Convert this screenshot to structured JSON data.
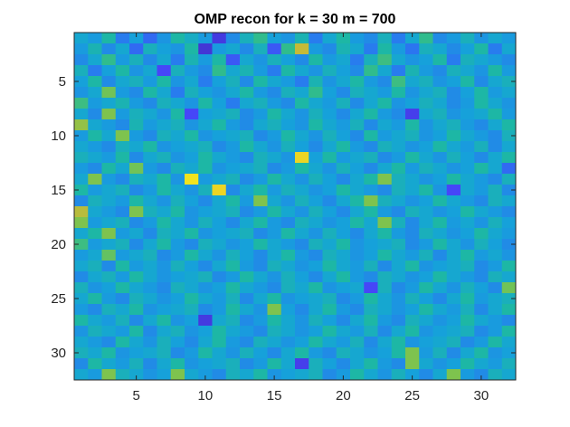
{
  "chart_data": {
    "type": "heatmap",
    "title": "OMP recon for k = 30 m = 700",
    "xlabel": "",
    "ylabel": "",
    "rows": 32,
    "cols": 32,
    "xlim": [
      0.5,
      32.5
    ],
    "ylim": [
      0.5,
      32.5
    ],
    "y_reversed": true,
    "x_ticks": [
      5,
      10,
      15,
      20,
      25,
      30
    ],
    "y_ticks": [
      5,
      10,
      15,
      20,
      25,
      30
    ],
    "x_tick_labels": [
      "5",
      "10",
      "15",
      "20",
      "25",
      "30"
    ],
    "y_tick_labels": [
      "5",
      "10",
      "15",
      "20",
      "25",
      "30"
    ],
    "colormap": "parula",
    "colormap_stops": [
      "#3e26a8",
      "#4743f8",
      "#2a77f0",
      "#15a4d9",
      "#1eba9c",
      "#7ac44f",
      "#e2b72f",
      "#f9fb15"
    ],
    "clim": [
      0,
      1
    ],
    "grid": false,
    "legend": "none",
    "values": [
      [
        0.45,
        0.4,
        0.55,
        0.3,
        0.42,
        0.25,
        0.38,
        0.55,
        0.48,
        0.4,
        0.1,
        0.35,
        0.5,
        0.6,
        0.42,
        0.38,
        0.52,
        0.3,
        0.45,
        0.55,
        0.4,
        0.35,
        0.5,
        0.3,
        0.45,
        0.6,
        0.35,
        0.4,
        0.5,
        0.38,
        0.45,
        0.4
      ],
      [
        0.4,
        0.52,
        0.35,
        0.45,
        0.25,
        0.5,
        0.42,
        0.38,
        0.55,
        0.08,
        0.4,
        0.45,
        0.35,
        0.5,
        0.2,
        0.6,
        0.82,
        0.4,
        0.35,
        0.52,
        0.45,
        0.3,
        0.55,
        0.4,
        0.28,
        0.5,
        0.45,
        0.35,
        0.42,
        0.55,
        0.3,
        0.45
      ],
      [
        0.35,
        0.45,
        0.6,
        0.4,
        0.5,
        0.35,
        0.45,
        0.3,
        0.52,
        0.4,
        0.55,
        0.2,
        0.45,
        0.38,
        0.5,
        0.42,
        0.35,
        0.55,
        0.4,
        0.45,
        0.3,
        0.5,
        0.62,
        0.45,
        0.38,
        0.42,
        0.55,
        0.3,
        0.5,
        0.45,
        0.4,
        0.35
      ],
      [
        0.5,
        0.3,
        0.42,
        0.55,
        0.38,
        0.45,
        0.15,
        0.5,
        0.4,
        0.35,
        0.6,
        0.45,
        0.52,
        0.4,
        0.3,
        0.55,
        0.45,
        0.38,
        0.5,
        0.42,
        0.35,
        0.6,
        0.45,
        0.3,
        0.52,
        0.4,
        0.35,
        0.5,
        0.45,
        0.38,
        0.55,
        0.4
      ],
      [
        0.42,
        0.55,
        0.35,
        0.45,
        0.5,
        0.4,
        0.55,
        0.38,
        0.45,
        0.3,
        0.42,
        0.5,
        0.35,
        0.55,
        0.45,
        0.4,
        0.3,
        0.52,
        0.38,
        0.45,
        0.55,
        0.4,
        0.35,
        0.62,
        0.45,
        0.5,
        0.38,
        0.42,
        0.55,
        0.35,
        0.45,
        0.5
      ],
      [
        0.38,
        0.45,
        0.7,
        0.4,
        0.35,
        0.55,
        0.45,
        0.3,
        0.5,
        0.42,
        0.38,
        0.45,
        0.55,
        0.4,
        0.35,
        0.5,
        0.45,
        0.6,
        0.42,
        0.35,
        0.5,
        0.45,
        0.4,
        0.55,
        0.38,
        0.45,
        0.5,
        0.35,
        0.42,
        0.55,
        0.4,
        0.45
      ],
      [
        0.62,
        0.4,
        0.45,
        0.52,
        0.4,
        0.35,
        0.5,
        0.45,
        0.38,
        0.55,
        0.42,
        0.3,
        0.45,
        0.5,
        0.4,
        0.35,
        0.55,
        0.45,
        0.4,
        0.5,
        0.35,
        0.45,
        0.55,
        0.38,
        0.42,
        0.5,
        0.45,
        0.35,
        0.4,
        0.55,
        0.45,
        0.38
      ],
      [
        0.45,
        0.35,
        0.72,
        0.4,
        0.5,
        0.45,
        0.38,
        0.55,
        0.15,
        0.42,
        0.45,
        0.5,
        0.35,
        0.4,
        0.55,
        0.45,
        0.38,
        0.5,
        0.42,
        0.35,
        0.45,
        0.55,
        0.4,
        0.35,
        0.12,
        0.45,
        0.5,
        0.38,
        0.42,
        0.45,
        0.55,
        0.4
      ],
      [
        0.75,
        0.45,
        0.4,
        0.35,
        0.52,
        0.4,
        0.45,
        0.5,
        0.38,
        0.45,
        0.55,
        0.4,
        0.35,
        0.45,
        0.5,
        0.42,
        0.38,
        0.55,
        0.45,
        0.4,
        0.5,
        0.35,
        0.45,
        0.4,
        0.55,
        0.38,
        0.45,
        0.5,
        0.4,
        0.35,
        0.45,
        0.55
      ],
      [
        0.4,
        0.55,
        0.45,
        0.72,
        0.4,
        0.35,
        0.5,
        0.45,
        0.55,
        0.38,
        0.42,
        0.45,
        0.5,
        0.35,
        0.4,
        0.55,
        0.45,
        0.38,
        0.5,
        0.42,
        0.35,
        0.55,
        0.4,
        0.45,
        0.5,
        0.38,
        0.42,
        0.55,
        0.45,
        0.4,
        0.35,
        0.5
      ],
      [
        0.45,
        0.4,
        0.35,
        0.5,
        0.45,
        0.55,
        0.38,
        0.42,
        0.45,
        0.5,
        0.35,
        0.4,
        0.55,
        0.45,
        0.38,
        0.5,
        0.42,
        0.35,
        0.45,
        0.55,
        0.4,
        0.35,
        0.5,
        0.45,
        0.38,
        0.42,
        0.55,
        0.45,
        0.4,
        0.5,
        0.35,
        0.45
      ],
      [
        0.5,
        0.45,
        0.4,
        0.55,
        0.35,
        0.45,
        0.5,
        0.38,
        0.42,
        0.55,
        0.45,
        0.4,
        0.35,
        0.5,
        0.45,
        0.38,
        0.92,
        0.42,
        0.55,
        0.4,
        0.45,
        0.5,
        0.35,
        0.4,
        0.55,
        0.45,
        0.38,
        0.5,
        0.42,
        0.35,
        0.45,
        0.55
      ],
      [
        0.4,
        0.35,
        0.55,
        0.45,
        0.7,
        0.4,
        0.35,
        0.5,
        0.45,
        0.55,
        0.38,
        0.42,
        0.45,
        0.5,
        0.35,
        0.4,
        0.55,
        0.45,
        0.38,
        0.5,
        0.42,
        0.35,
        0.45,
        0.55,
        0.4,
        0.5,
        0.45,
        0.38,
        0.42,
        0.55,
        0.45,
        0.25
      ],
      [
        0.45,
        0.72,
        0.4,
        0.35,
        0.5,
        0.45,
        0.55,
        0.38,
        0.95,
        0.4,
        0.45,
        0.5,
        0.35,
        0.4,
        0.55,
        0.45,
        0.38,
        0.5,
        0.42,
        0.35,
        0.45,
        0.55,
        0.72,
        0.5,
        0.45,
        0.38,
        0.42,
        0.55,
        0.45,
        0.4,
        0.35,
        0.5
      ],
      [
        0.55,
        0.4,
        0.45,
        0.5,
        0.35,
        0.4,
        0.55,
        0.45,
        0.38,
        0.5,
        0.92,
        0.35,
        0.45,
        0.55,
        0.4,
        0.5,
        0.45,
        0.38,
        0.42,
        0.55,
        0.45,
        0.4,
        0.35,
        0.5,
        0.45,
        0.55,
        0.38,
        0.15,
        0.45,
        0.4,
        0.5,
        0.35
      ],
      [
        0.35,
        0.5,
        0.45,
        0.4,
        0.55,
        0.45,
        0.38,
        0.5,
        0.42,
        0.35,
        0.45,
        0.55,
        0.4,
        0.72,
        0.45,
        0.38,
        0.5,
        0.42,
        0.35,
        0.45,
        0.55,
        0.72,
        0.5,
        0.45,
        0.38,
        0.42,
        0.55,
        0.45,
        0.4,
        0.35,
        0.5,
        0.45
      ],
      [
        0.8,
        0.45,
        0.4,
        0.35,
        0.72,
        0.5,
        0.45,
        0.55,
        0.38,
        0.42,
        0.45,
        0.5,
        0.35,
        0.4,
        0.55,
        0.45,
        0.38,
        0.5,
        0.42,
        0.35,
        0.45,
        0.55,
        0.4,
        0.35,
        0.5,
        0.45,
        0.38,
        0.42,
        0.55,
        0.45,
        0.4,
        0.35
      ],
      [
        0.72,
        0.4,
        0.45,
        0.5,
        0.35,
        0.4,
        0.55,
        0.45,
        0.38,
        0.5,
        0.42,
        0.35,
        0.45,
        0.55,
        0.4,
        0.35,
        0.5,
        0.45,
        0.38,
        0.42,
        0.55,
        0.45,
        0.72,
        0.5,
        0.35,
        0.45,
        0.55,
        0.4,
        0.45,
        0.38,
        0.5,
        0.42
      ],
      [
        0.45,
        0.55,
        0.72,
        0.4,
        0.45,
        0.35,
        0.5,
        0.45,
        0.55,
        0.38,
        0.42,
        0.45,
        0.5,
        0.35,
        0.4,
        0.55,
        0.45,
        0.38,
        0.5,
        0.42,
        0.35,
        0.45,
        0.55,
        0.4,
        0.35,
        0.5,
        0.45,
        0.38,
        0.42,
        0.55,
        0.45,
        0.4
      ],
      [
        0.62,
        0.4,
        0.45,
        0.5,
        0.35,
        0.45,
        0.55,
        0.4,
        0.35,
        0.5,
        0.45,
        0.38,
        0.42,
        0.55,
        0.45,
        0.4,
        0.35,
        0.5,
        0.45,
        0.55,
        0.38,
        0.42,
        0.45,
        0.5,
        0.35,
        0.4,
        0.55,
        0.45,
        0.38,
        0.5,
        0.42,
        0.35
      ],
      [
        0.4,
        0.45,
        0.68,
        0.4,
        0.45,
        0.5,
        0.35,
        0.4,
        0.55,
        0.45,
        0.38,
        0.5,
        0.42,
        0.35,
        0.45,
        0.55,
        0.4,
        0.35,
        0.5,
        0.45,
        0.38,
        0.42,
        0.55,
        0.45,
        0.4,
        0.5,
        0.35,
        0.45,
        0.55,
        0.4,
        0.45,
        0.38
      ],
      [
        0.45,
        0.5,
        0.35,
        0.55,
        0.4,
        0.45,
        0.38,
        0.5,
        0.42,
        0.35,
        0.45,
        0.55,
        0.4,
        0.35,
        0.5,
        0.45,
        0.38,
        0.42,
        0.55,
        0.45,
        0.4,
        0.5,
        0.35,
        0.45,
        0.55,
        0.38,
        0.42,
        0.45,
        0.5,
        0.35,
        0.4,
        0.55
      ],
      [
        0.35,
        0.45,
        0.5,
        0.4,
        0.55,
        0.45,
        0.38,
        0.42,
        0.45,
        0.5,
        0.35,
        0.4,
        0.55,
        0.45,
        0.38,
        0.5,
        0.42,
        0.35,
        0.45,
        0.55,
        0.4,
        0.35,
        0.5,
        0.45,
        0.38,
        0.42,
        0.55,
        0.45,
        0.4,
        0.35,
        0.5,
        0.45
      ],
      [
        0.5,
        0.38,
        0.42,
        0.55,
        0.45,
        0.4,
        0.35,
        0.5,
        0.45,
        0.38,
        0.42,
        0.55,
        0.45,
        0.4,
        0.35,
        0.5,
        0.45,
        0.55,
        0.38,
        0.42,
        0.45,
        0.15,
        0.5,
        0.35,
        0.4,
        0.55,
        0.45,
        0.38,
        0.5,
        0.42,
        0.35,
        0.7
      ],
      [
        0.45,
        0.55,
        0.4,
        0.35,
        0.5,
        0.45,
        0.38,
        0.42,
        0.55,
        0.45,
        0.4,
        0.5,
        0.35,
        0.45,
        0.55,
        0.38,
        0.42,
        0.45,
        0.5,
        0.35,
        0.4,
        0.55,
        0.45,
        0.38,
        0.5,
        0.42,
        0.35,
        0.45,
        0.55,
        0.4,
        0.45,
        0.5
      ],
      [
        0.4,
        0.35,
        0.5,
        0.45,
        0.55,
        0.38,
        0.42,
        0.45,
        0.5,
        0.35,
        0.4,
        0.55,
        0.45,
        0.38,
        0.72,
        0.42,
        0.35,
        0.45,
        0.55,
        0.4,
        0.35,
        0.5,
        0.45,
        0.38,
        0.42,
        0.55,
        0.45,
        0.4,
        0.5,
        0.35,
        0.45,
        0.55
      ],
      [
        0.55,
        0.45,
        0.4,
        0.5,
        0.35,
        0.45,
        0.55,
        0.38,
        0.42,
        0.1,
        0.45,
        0.5,
        0.35,
        0.4,
        0.55,
        0.45,
        0.38,
        0.5,
        0.42,
        0.35,
        0.45,
        0.55,
        0.4,
        0.35,
        0.5,
        0.45,
        0.38,
        0.42,
        0.55,
        0.45,
        0.4,
        0.35
      ],
      [
        0.38,
        0.5,
        0.45,
        0.4,
        0.55,
        0.35,
        0.45,
        0.5,
        0.38,
        0.42,
        0.55,
        0.45,
        0.4,
        0.35,
        0.5,
        0.45,
        0.38,
        0.42,
        0.55,
        0.45,
        0.4,
        0.5,
        0.35,
        0.45,
        0.55,
        0.38,
        0.42,
        0.45,
        0.5,
        0.35,
        0.4,
        0.55
      ],
      [
        0.45,
        0.4,
        0.35,
        0.55,
        0.45,
        0.38,
        0.5,
        0.42,
        0.35,
        0.45,
        0.55,
        0.4,
        0.35,
        0.5,
        0.45,
        0.38,
        0.42,
        0.55,
        0.45,
        0.4,
        0.5,
        0.35,
        0.45,
        0.55,
        0.38,
        0.42,
        0.45,
        0.5,
        0.35,
        0.4,
        0.55,
        0.45
      ],
      [
        0.5,
        0.45,
        0.55,
        0.38,
        0.42,
        0.45,
        0.5,
        0.35,
        0.4,
        0.55,
        0.45,
        0.38,
        0.5,
        0.42,
        0.35,
        0.45,
        0.55,
        0.4,
        0.35,
        0.5,
        0.45,
        0.38,
        0.42,
        0.55,
        0.72,
        0.4,
        0.5,
        0.35,
        0.45,
        0.55,
        0.38,
        0.42
      ],
      [
        0.35,
        0.55,
        0.45,
        0.4,
        0.5,
        0.35,
        0.45,
        0.55,
        0.38,
        0.42,
        0.45,
        0.5,
        0.35,
        0.4,
        0.55,
        0.45,
        0.12,
        0.5,
        0.42,
        0.35,
        0.45,
        0.55,
        0.4,
        0.35,
        0.72,
        0.45,
        0.38,
        0.42,
        0.55,
        0.45,
        0.4,
        0.5
      ],
      [
        0.45,
        0.4,
        0.72,
        0.5,
        0.45,
        0.38,
        0.42,
        0.72,
        0.45,
        0.4,
        0.35,
        0.5,
        0.45,
        0.55,
        0.38,
        0.42,
        0.45,
        0.5,
        0.35,
        0.4,
        0.55,
        0.45,
        0.38,
        0.5,
        0.42,
        0.35,
        0.45,
        0.72,
        0.4,
        0.35,
        0.5,
        0.45
      ]
    ]
  }
}
